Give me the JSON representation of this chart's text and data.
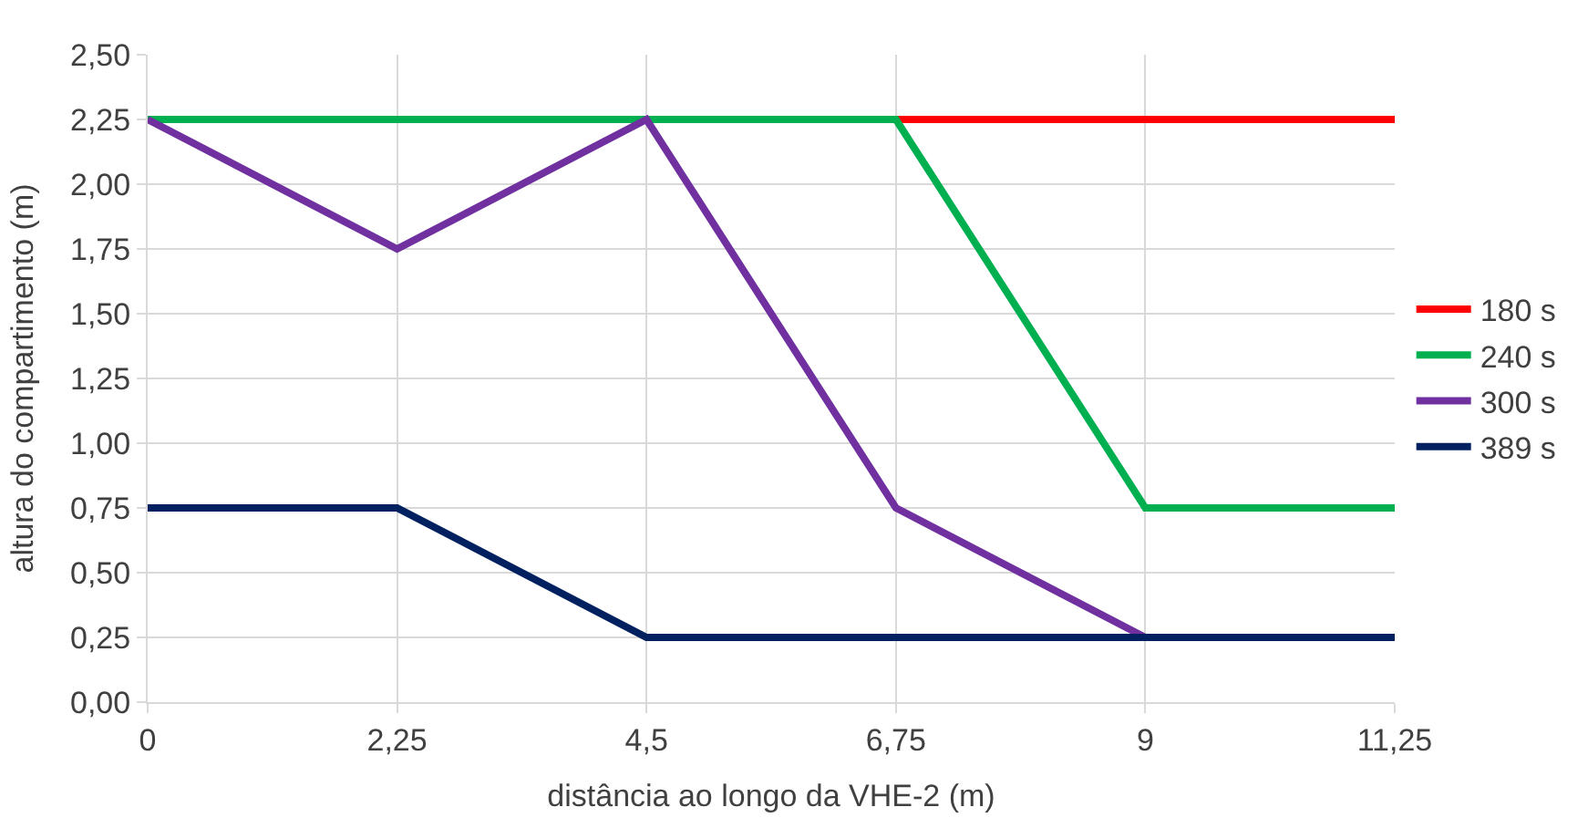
{
  "chart_data": {
    "type": "line",
    "xlabel": "distância ao longo da VHE-2 (m)",
    "ylabel": "altura do compartimento (m)",
    "x": [
      0,
      2.25,
      4.5,
      6.75,
      9,
      11.25
    ],
    "series": [
      {
        "name": "180 s",
        "color": "#ff0000",
        "values": [
          null,
          null,
          null,
          2.25,
          2.25,
          2.25
        ]
      },
      {
        "name": "240 s",
        "color": "#00b050",
        "values": [
          2.25,
          2.25,
          2.25,
          2.25,
          0.75,
          0.75
        ]
      },
      {
        "name": "300 s",
        "color": "#7030a0",
        "values": [
          2.25,
          1.75,
          2.25,
          0.75,
          0.25,
          null
        ]
      },
      {
        "name": "389 s",
        "color": "#002060",
        "values": [
          0.75,
          0.75,
          0.25,
          0.25,
          0.25,
          0.25
        ]
      }
    ],
    "xlim": [
      0,
      11.25
    ],
    "xticks": [
      0,
      {
        "value": 2.25,
        "label": "2,25"
      },
      {
        "value": 4.5,
        "label": "4,5"
      },
      {
        "value": 6.75,
        "label": "6,75"
      },
      9,
      {
        "value": 11.25,
        "label": "11,25"
      }
    ],
    "ylim": [
      0,
      2.5
    ],
    "yticks": [
      {
        "value": 0,
        "label": "0,00"
      },
      {
        "value": 0.25,
        "label": "0,25"
      },
      {
        "value": 0.5,
        "label": "0,50"
      },
      {
        "value": 0.75,
        "label": "0,75"
      },
      {
        "value": 1,
        "label": "1,00"
      },
      {
        "value": 1.25,
        "label": "1,25"
      },
      {
        "value": 1.5,
        "label": "1,50"
      },
      {
        "value": 1.75,
        "label": "1,75"
      },
      {
        "value": 2,
        "label": "2,00"
      },
      {
        "value": 2.25,
        "label": "2,25"
      },
      {
        "value": 2.5,
        "label": "2,50"
      }
    ],
    "grid": true,
    "legend": "right",
    "marker": "none",
    "line_style": "solid"
  }
}
